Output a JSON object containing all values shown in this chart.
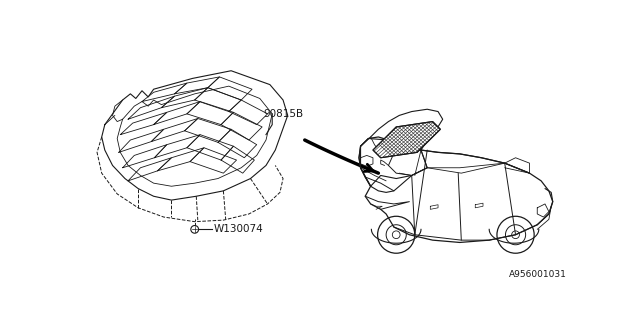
{
  "background_color": "#ffffff",
  "line_color": "#1a1a1a",
  "label_90815B": "90815B",
  "label_W130074": "W130074",
  "label_code": "A956001031",
  "fig_width": 6.4,
  "fig_height": 3.2,
  "dpi": 100
}
